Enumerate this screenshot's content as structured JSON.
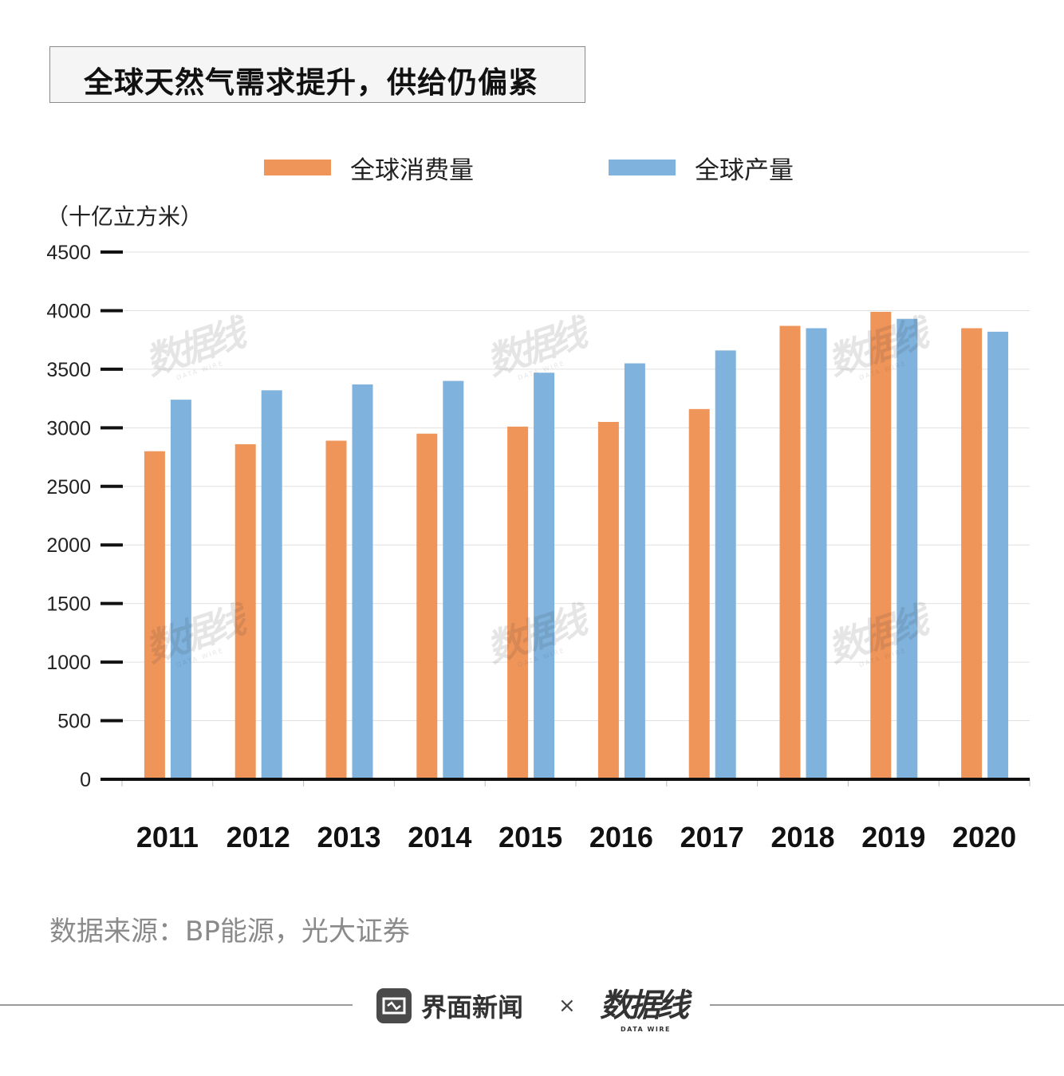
{
  "title": "全球天然气需求提升，供给仍偏紧",
  "legend": [
    {
      "name": "全球消费量",
      "color": "#f0955a"
    },
    {
      "name": "全球产量",
      "color": "#7fb2dd"
    }
  ],
  "unit_label": "（十亿立方米）",
  "source": "数据来源：BP能源，光大证券",
  "footer": {
    "brand": "界面新闻",
    "times": "×",
    "partner": "数据线",
    "partner_sub": "DATA WIRE"
  },
  "watermark": {
    "text": "数据线",
    "sub": "DATA WIRE"
  },
  "chart_data": {
    "type": "bar",
    "categories": [
      "2011",
      "2012",
      "2013",
      "2014",
      "2015",
      "2016",
      "2017",
      "2018",
      "2019",
      "2020"
    ],
    "series": [
      {
        "name": "全球消费量",
        "color": "#f0955a",
        "values": [
          2800,
          2860,
          2890,
          2950,
          3010,
          3050,
          3160,
          3870,
          3990,
          3850
        ]
      },
      {
        "name": "全球产量",
        "color": "#7fb2dd",
        "values": [
          3240,
          3320,
          3370,
          3400,
          3470,
          3550,
          3660,
          3850,
          3930,
          3820
        ]
      }
    ],
    "yticks": [
      0,
      500,
      1000,
      1500,
      2000,
      2500,
      3000,
      3500,
      4000,
      4500
    ],
    "ylim": [
      0,
      4500
    ],
    "ylabel": "（十亿立方米）",
    "xlabel": "",
    "grid": true,
    "legend_position": "top"
  }
}
